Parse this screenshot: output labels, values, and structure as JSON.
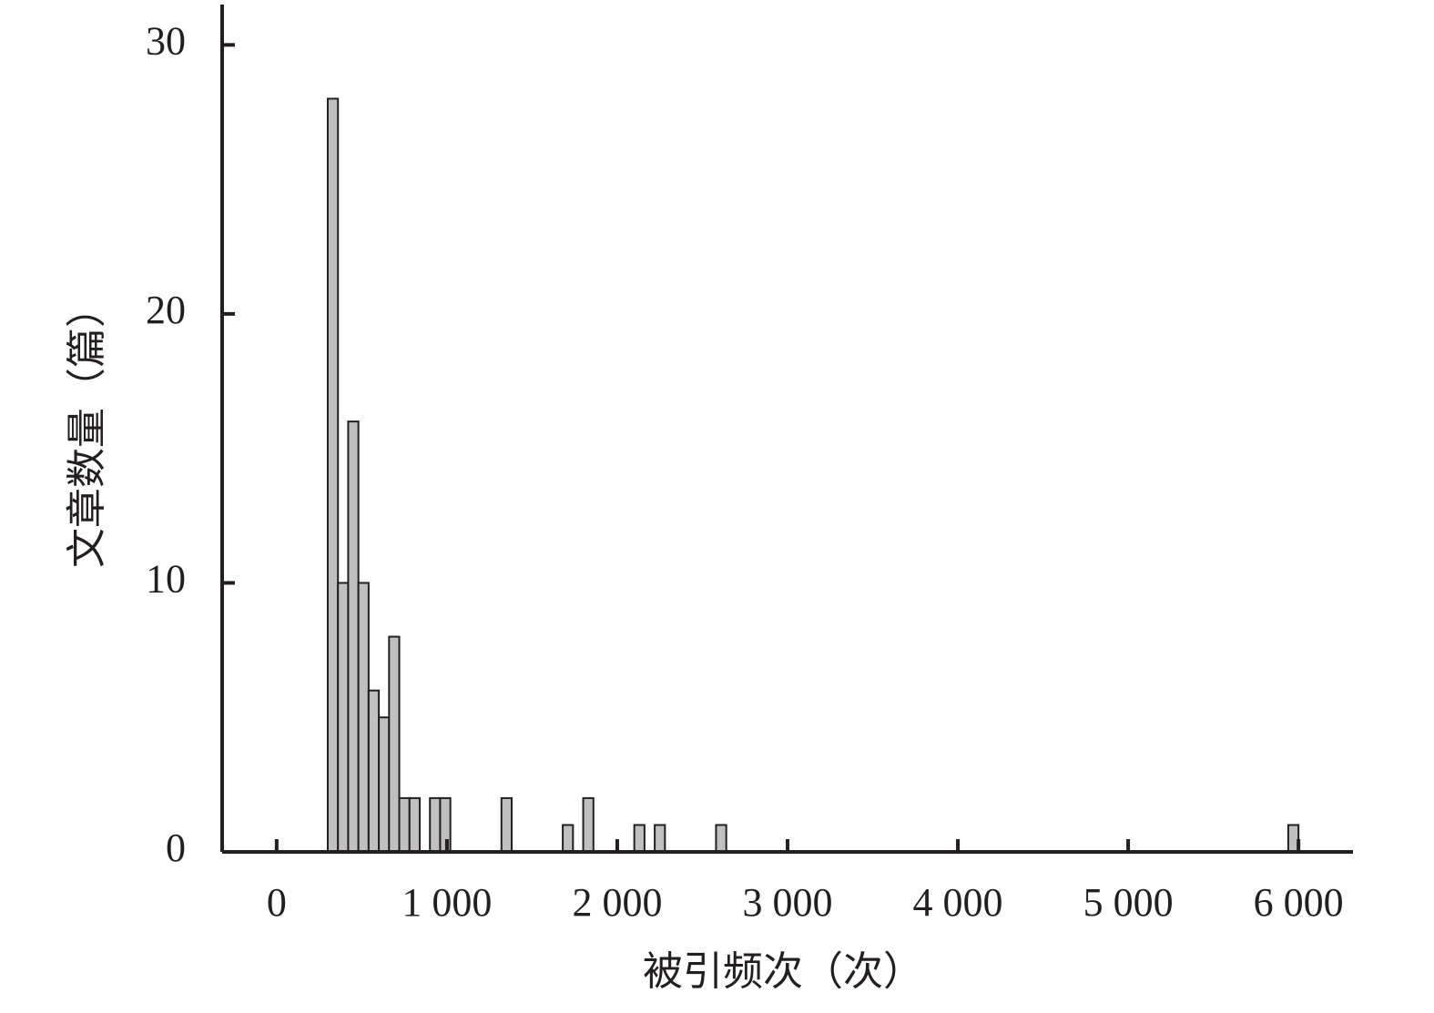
{
  "chart_data": {
    "type": "histogram",
    "x_label": "被引频次（次）",
    "y_label": "文章数量（篇）",
    "bins": [
      300,
      360,
      420,
      480,
      540,
      600,
      660,
      720,
      780,
      840,
      900,
      960,
      1020,
      1320,
      1380,
      1680,
      1740,
      1800,
      1860,
      2100,
      2160,
      2220,
      2280,
      2580,
      2640,
      5940,
      6000
    ],
    "values": [
      28,
      10,
      16,
      10,
      6,
      5,
      8,
      2,
      2,
      0,
      2,
      2,
      0,
      2,
      0,
      1,
      0,
      2,
      0,
      1,
      0,
      1,
      0,
      1,
      0,
      1
    ],
    "color": "#c0c0c0",
    "xlim": [
      -320,
      6320
    ],
    "ylim": [
      0,
      31.5
    ],
    "xticks": [
      0,
      {
        "value": 1000,
        "label": "1 000"
      },
      {
        "value": 2000,
        "label": "2 000"
      },
      {
        "value": 3000,
        "label": "3 000"
      },
      {
        "value": 4000,
        "label": "4 000"
      },
      {
        "value": 5000,
        "label": "5 000"
      },
      {
        "value": 6000,
        "label": "6 000"
      }
    ],
    "yticks": [
      0,
      10,
      20,
      30
    ]
  }
}
